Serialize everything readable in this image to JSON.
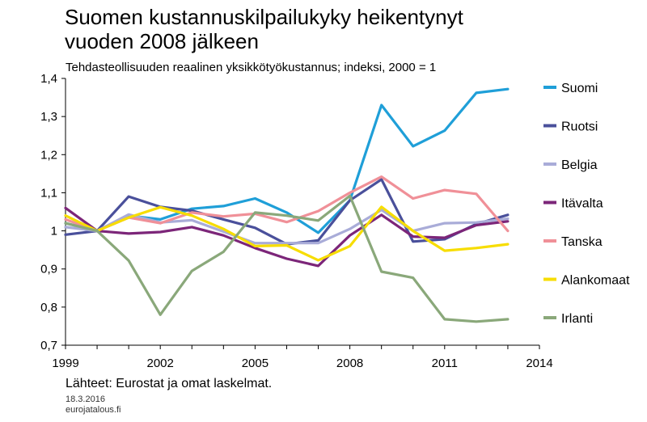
{
  "header": {
    "title_line1": "Suomen kustannuskilpailukyky heikentynyt",
    "title_line2": "vuoden 2008 jälkeen",
    "subtitle": "Tehdasteollisuuden reaalinen yksikkötyökustannus;  indeksi, 2000 = 1"
  },
  "footer": {
    "source": "Lähteet: Eurostat ja omat laskelmat.",
    "date": "18.3.2016",
    "site": "eurojatalous.fi"
  },
  "chart_data": {
    "type": "line",
    "title": "Suomen kustannuskilpailukyky heikentynyt vuoden 2008 jälkeen",
    "subtitle": "Tehdasteollisuuden reaalinen yksikkötyökustannus;  indeksi, 2000 = 1",
    "xlim": [
      1999,
      2014
    ],
    "ylim": [
      0.7,
      1.4
    ],
    "x_ticks": [
      1999,
      2002,
      2005,
      2008,
      2011,
      2014
    ],
    "y_ticks": [
      0.7,
      0.8,
      0.9,
      1.0,
      1.1,
      1.2,
      1.3,
      1.4
    ],
    "y_tick_labels": [
      "0,7",
      "0,8",
      "0,9",
      "1",
      "1,1",
      "1,2",
      "1,3",
      "1,4"
    ],
    "grid": "none",
    "legend_position": "right",
    "x": [
      1999,
      2000,
      2001,
      2002,
      2003,
      2004,
      2005,
      2006,
      2007,
      2008,
      2009,
      2010,
      2011,
      2012,
      2013
    ],
    "series": [
      {
        "name": "Suomi",
        "color": "#1f9fd8",
        "values": [
          1.02,
          1.0,
          1.04,
          1.03,
          1.058,
          1.065,
          1.085,
          1.048,
          0.995,
          1.08,
          1.33,
          1.222,
          1.263,
          1.362,
          1.372
        ]
      },
      {
        "name": "Ruotsi",
        "color": "#4a509b",
        "values": [
          0.99,
          1.0,
          1.09,
          1.063,
          1.053,
          1.03,
          1.008,
          0.965,
          0.975,
          1.08,
          1.135,
          0.972,
          0.978,
          1.018,
          1.042
        ]
      },
      {
        "name": "Belgia",
        "color": "#a9acd8",
        "values": [
          1.01,
          1.0,
          1.043,
          1.022,
          1.028,
          0.998,
          0.968,
          0.968,
          0.968,
          1.005,
          1.055,
          1.0,
          1.02,
          1.022,
          1.032
        ]
      },
      {
        "name": "Itävalta",
        "color": "#7c2679",
        "values": [
          1.06,
          1.0,
          0.993,
          0.997,
          1.01,
          0.988,
          0.955,
          0.927,
          0.908,
          0.988,
          1.042,
          0.985,
          0.982,
          1.015,
          1.025
        ]
      },
      {
        "name": "Tanska",
        "color": "#f09098",
        "values": [
          1.03,
          1.0,
          1.035,
          1.02,
          1.048,
          1.038,
          1.045,
          1.023,
          1.052,
          1.1,
          1.142,
          1.085,
          1.107,
          1.097,
          1.0
        ]
      },
      {
        "name": "Alankomaat",
        "color": "#f7dd00",
        "values": [
          1.04,
          1.0,
          1.035,
          1.062,
          1.04,
          1.005,
          0.96,
          0.962,
          0.923,
          0.96,
          1.063,
          1.0,
          0.948,
          0.955,
          0.965
        ]
      },
      {
        "name": "Irlanti",
        "color": "#8aa87a",
        "values": [
          1.02,
          1.0,
          0.922,
          0.78,
          0.895,
          0.945,
          1.048,
          1.04,
          1.027,
          1.092,
          0.893,
          0.877,
          0.768,
          0.762,
          0.768
        ]
      }
    ]
  }
}
